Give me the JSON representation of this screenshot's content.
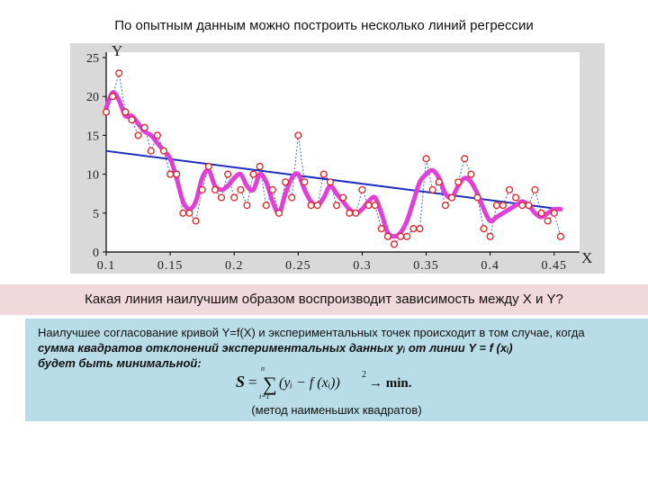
{
  "slide": {
    "title": "По опытным данным можно построить несколько линий регрессии",
    "question": "Какая линия наилучшим образом воспроизводит зависимость между X и Y?",
    "explanation": {
      "line1": "Наилучшее согласование кривой Y=f(X) и экспериментальных точек происходит в том случае, когда",
      "line2": "сумма квадратов отклонений экспериментальных данных   yᵢ  от линии  Y = f (xᵢ)",
      "line3": "будет быть минимальной:",
      "formula": {
        "s": "S",
        "eq": "=",
        "sum_top": "n",
        "sum_bottom": "i=1",
        "body": "(yᵢ − f (xᵢ))",
        "power": "2",
        "arrow": "→ min."
      },
      "method": "(метод наименьших квадратов)"
    }
  },
  "chart_data": {
    "type": "scatter",
    "xlabel": "X",
    "ylabel": "Y",
    "xlim": [
      0.1,
      0.46
    ],
    "ylim": [
      0,
      25
    ],
    "x_ticks": [
      "0.1",
      "0.15",
      "0.2",
      "0.25",
      "0.3",
      "0.35",
      "0.4",
      "0.45"
    ],
    "y_ticks": [
      "0",
      "5",
      "10",
      "15",
      "20",
      "25"
    ],
    "grid": false,
    "colors": {
      "points": "#e02020",
      "dotted_line": "#3a6ad0",
      "regression_line": "#1c2fc0",
      "smooth_curve": "#e040d8",
      "plot_background": "#ffffff",
      "frame_background": "#d9d9d9"
    },
    "series": [
      {
        "kind": "points",
        "x": [
          0.1,
          0.105,
          0.11,
          0.115,
          0.12,
          0.125,
          0.13,
          0.135,
          0.14,
          0.145,
          0.15,
          0.155,
          0.16,
          0.165,
          0.17,
          0.175,
          0.18,
          0.185,
          0.19,
          0.195,
          0.2,
          0.205,
          0.21,
          0.215,
          0.22,
          0.225,
          0.23,
          0.235,
          0.24,
          0.245,
          0.25,
          0.255,
          0.26,
          0.265,
          0.27,
          0.275,
          0.28,
          0.285,
          0.29,
          0.295,
          0.3,
          0.305,
          0.31,
          0.315,
          0.32,
          0.325,
          0.33,
          0.335,
          0.34,
          0.345,
          0.35,
          0.355,
          0.36,
          0.365,
          0.37,
          0.375,
          0.38,
          0.385,
          0.39,
          0.395,
          0.4,
          0.405,
          0.41,
          0.415,
          0.42,
          0.425,
          0.43,
          0.435,
          0.44,
          0.445,
          0.45,
          0.455
        ],
        "y": [
          18,
          20,
          23,
          18,
          17,
          15,
          16,
          13,
          15,
          13,
          10,
          10,
          5,
          5,
          4,
          8,
          11,
          8,
          7,
          10,
          7,
          8,
          6,
          10,
          11,
          6,
          8,
          5,
          9,
          7,
          15,
          9,
          6,
          6,
          10,
          9,
          6,
          7,
          5,
          5,
          8,
          6,
          6,
          3,
          2,
          1,
          2,
          2,
          3,
          3,
          12,
          8,
          9,
          6,
          7,
          9,
          12,
          10,
          7,
          3,
          2,
          6,
          6,
          8,
          7,
          6,
          6,
          8,
          5,
          4,
          5,
          2
        ]
      },
      {
        "kind": "regression-line",
        "x": [
          0.1,
          0.455
        ],
        "y": [
          13,
          5.5
        ]
      },
      {
        "kind": "smooth-curve",
        "x": [
          0.1,
          0.105,
          0.11,
          0.115,
          0.12,
          0.125,
          0.13,
          0.135,
          0.14,
          0.145,
          0.15,
          0.155,
          0.16,
          0.165,
          0.17,
          0.175,
          0.18,
          0.185,
          0.19,
          0.195,
          0.2,
          0.205,
          0.21,
          0.215,
          0.22,
          0.225,
          0.23,
          0.235,
          0.24,
          0.245,
          0.25,
          0.255,
          0.26,
          0.265,
          0.27,
          0.275,
          0.28,
          0.285,
          0.29,
          0.295,
          0.3,
          0.305,
          0.31,
          0.315,
          0.32,
          0.325,
          0.33,
          0.335,
          0.34,
          0.345,
          0.35,
          0.355,
          0.36,
          0.365,
          0.37,
          0.375,
          0.38,
          0.385,
          0.39,
          0.395,
          0.4,
          0.405,
          0.41,
          0.415,
          0.42,
          0.425,
          0.43,
          0.435,
          0.44,
          0.445,
          0.45,
          0.455
        ],
        "y": [
          18.5,
          20.5,
          19.5,
          17.5,
          17.5,
          16.5,
          15.5,
          15,
          14,
          13,
          12,
          9.5,
          6.5,
          5.5,
          6.5,
          9.5,
          10.5,
          8.5,
          8,
          8.5,
          9.5,
          10,
          8.5,
          8,
          10,
          9,
          6.5,
          5,
          7.5,
          9.5,
          10,
          8,
          6.5,
          6,
          7,
          8.5,
          7.5,
          6.5,
          5.5,
          5,
          5.5,
          6.5,
          7,
          5,
          2.5,
          2,
          2.5,
          4,
          6.5,
          9,
          10,
          10.5,
          9.5,
          7.5,
          7,
          8.5,
          9.5,
          9,
          7.5,
          5.5,
          4,
          4.5,
          5,
          5.5,
          6,
          6.5,
          6,
          5,
          4.5,
          5,
          5.5,
          5.5
        ]
      }
    ]
  }
}
